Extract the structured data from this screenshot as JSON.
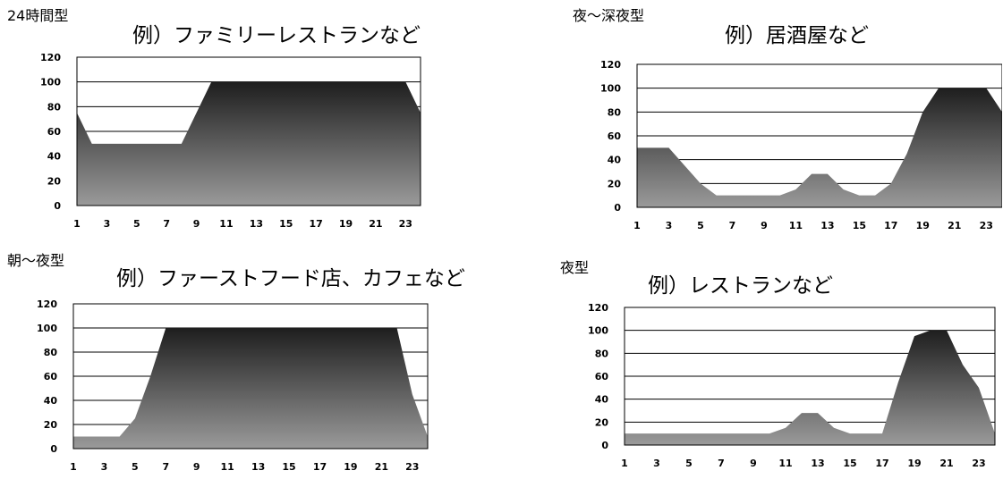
{
  "chart_data": [
    {
      "type": "area",
      "category": "24時間型",
      "title": "例）ファミリーレストランなど",
      "x": [
        1,
        2,
        3,
        4,
        5,
        6,
        7,
        8,
        9,
        10,
        11,
        12,
        13,
        14,
        15,
        16,
        17,
        18,
        19,
        20,
        21,
        22,
        23,
        24
      ],
      "x_ticks": [
        "1",
        "3",
        "5",
        "7",
        "9",
        "11",
        "13",
        "15",
        "17",
        "19",
        "21",
        "23"
      ],
      "values": [
        75,
        50,
        50,
        50,
        50,
        50,
        50,
        50,
        75,
        100,
        100,
        100,
        100,
        100,
        100,
        100,
        100,
        100,
        100,
        100,
        100,
        100,
        100,
        75
      ],
      "y_ticks": [
        "0",
        "20",
        "40",
        "60",
        "80",
        "100",
        "120"
      ],
      "ylim": [
        0,
        120
      ],
      "grid": true,
      "fill_color_top": "#1e1e1e",
      "fill_color_bottom": "#9a9a9a"
    },
    {
      "type": "area",
      "category": "夜〜深夜型",
      "title": "例）居酒屋など",
      "x": [
        1,
        2,
        3,
        4,
        5,
        6,
        7,
        8,
        9,
        10,
        11,
        12,
        13,
        14,
        15,
        16,
        17,
        18,
        19,
        20,
        21,
        22,
        23,
        24
      ],
      "x_ticks": [
        "1",
        "3",
        "5",
        "7",
        "9",
        "11",
        "13",
        "15",
        "17",
        "19",
        "21",
        "23"
      ],
      "values": [
        50,
        50,
        50,
        35,
        20,
        10,
        10,
        10,
        10,
        10,
        15,
        28,
        28,
        15,
        10,
        10,
        20,
        45,
        80,
        100,
        100,
        100,
        100,
        80
      ],
      "y_ticks": [
        "0",
        "20",
        "40",
        "60",
        "80",
        "100",
        "120"
      ],
      "ylim": [
        0,
        120
      ],
      "grid": true,
      "fill_color_top": "#1e1e1e",
      "fill_color_bottom": "#9a9a9a"
    },
    {
      "type": "area",
      "category": "朝〜夜型",
      "title": "例）ファーストフード店、カフェなど",
      "x": [
        1,
        2,
        3,
        4,
        5,
        6,
        7,
        8,
        9,
        10,
        11,
        12,
        13,
        14,
        15,
        16,
        17,
        18,
        19,
        20,
        21,
        22,
        23,
        24
      ],
      "x_ticks": [
        "1",
        "3",
        "5",
        "7",
        "9",
        "11",
        "13",
        "15",
        "17",
        "19",
        "21",
        "23"
      ],
      "values": [
        10,
        10,
        10,
        10,
        25,
        60,
        100,
        100,
        100,
        100,
        100,
        100,
        100,
        100,
        100,
        100,
        100,
        100,
        100,
        100,
        100,
        100,
        45,
        10
      ],
      "y_ticks": [
        "0",
        "20",
        "40",
        "60",
        "80",
        "100",
        "120"
      ],
      "ylim": [
        0,
        120
      ],
      "grid": true,
      "fill_color_top": "#1e1e1e",
      "fill_color_bottom": "#9a9a9a"
    },
    {
      "type": "area",
      "category": "夜型",
      "title": "例）レストランなど",
      "x": [
        1,
        2,
        3,
        4,
        5,
        6,
        7,
        8,
        9,
        10,
        11,
        12,
        13,
        14,
        15,
        16,
        17,
        18,
        19,
        20,
        21,
        22,
        23,
        24
      ],
      "x_ticks": [
        "1",
        "3",
        "5",
        "7",
        "9",
        "11",
        "13",
        "15",
        "17",
        "19",
        "21",
        "23"
      ],
      "values": [
        10,
        10,
        10,
        10,
        10,
        10,
        10,
        10,
        10,
        10,
        15,
        28,
        28,
        15,
        10,
        10,
        10,
        55,
        95,
        100,
        100,
        70,
        50,
        10
      ],
      "y_ticks": [
        "0",
        "20",
        "40",
        "60",
        "80",
        "100",
        "120"
      ],
      "ylim": [
        0,
        120
      ],
      "grid": true,
      "fill_color_top": "#1e1e1e",
      "fill_color_bottom": "#9a9a9a"
    }
  ]
}
